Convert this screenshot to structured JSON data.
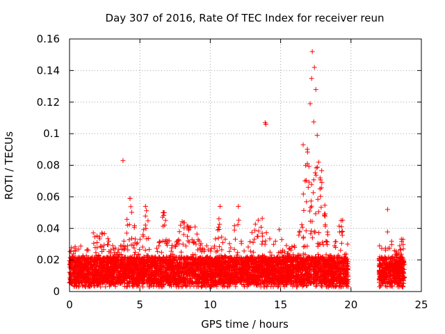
{
  "chart_data": {
    "type": "scatter",
    "title": "Day 307 of 2016, Rate Of TEC Index for receiver reun",
    "xlabel": "GPS time / hours",
    "ylabel": "ROTI / TECUs",
    "xlim": [
      0,
      25
    ],
    "ylim": [
      0,
      0.16
    ],
    "xticks": [
      0,
      5,
      10,
      15,
      20,
      25
    ],
    "xtick_labels": [
      "0",
      "5",
      "10",
      "15",
      "20",
      "25"
    ],
    "yticks": [
      0,
      0.02,
      0.04,
      0.06,
      0.08,
      0.1,
      0.12,
      0.14,
      0.16
    ],
    "ytick_labels": [
      "0",
      "0.02",
      "0.04",
      "0.06",
      "0.08",
      "0.1",
      "0.12",
      "0.14",
      "0.16"
    ],
    "grid": true,
    "marker": "+",
    "color": "#ff0000",
    "series": [
      {
        "name": "ROTI",
        "segments": [
          {
            "x_range": [
              0.0,
              19.8
            ],
            "baseline_range": [
              0.005,
              0.022
            ],
            "note": "dense band"
          },
          {
            "x_range": [
              22.0,
              23.8
            ],
            "baseline_range": [
              0.005,
              0.022
            ],
            "note": "dense band"
          }
        ],
        "notable_points": [
          {
            "x": 3.8,
            "y": 0.083
          },
          {
            "x": 4.3,
            "y": 0.059
          },
          {
            "x": 5.4,
            "y": 0.054
          },
          {
            "x": 6.7,
            "y": 0.05
          },
          {
            "x": 10.7,
            "y": 0.054
          },
          {
            "x": 12.0,
            "y": 0.054
          },
          {
            "x": 13.9,
            "y": 0.107
          },
          {
            "x": 13.95,
            "y": 0.106
          },
          {
            "x": 16.6,
            "y": 0.093
          },
          {
            "x": 16.9,
            "y": 0.081
          },
          {
            "x": 17.1,
            "y": 0.119
          },
          {
            "x": 17.2,
            "y": 0.135
          },
          {
            "x": 17.25,
            "y": 0.152
          },
          {
            "x": 17.4,
            "y": 0.142
          },
          {
            "x": 17.5,
            "y": 0.128
          },
          {
            "x": 17.6,
            "y": 0.099
          },
          {
            "x": 17.7,
            "y": 0.082
          },
          {
            "x": 17.8,
            "y": 0.065
          },
          {
            "x": 19.3,
            "y": 0.045
          },
          {
            "x": 22.6,
            "y": 0.052
          },
          {
            "x": 23.7,
            "y": 0.033
          }
        ]
      }
    ]
  }
}
